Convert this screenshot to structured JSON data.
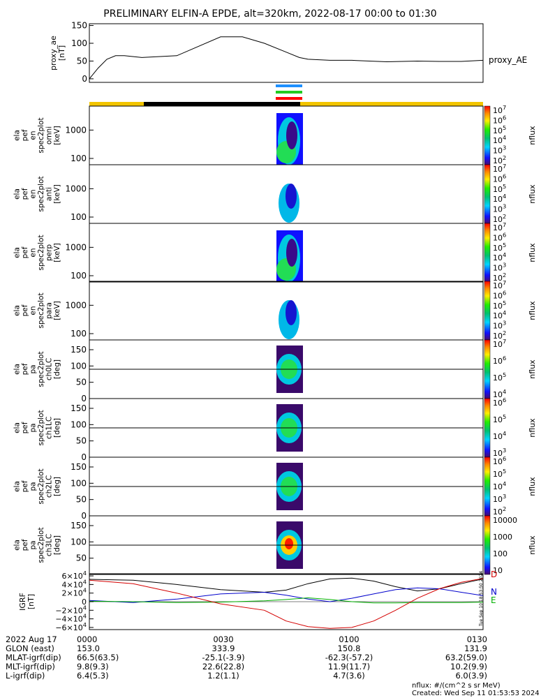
{
  "title": "PRELIMINARY ELFIN-A EPDE, alt=320km, 2022-08-17 00:00 to 01:30",
  "proxy_ae": {
    "ylabel_lines": [
      "proxy_ae",
      "[nT]"
    ],
    "legend": "proxy_AE",
    "yticks": [
      "150",
      "100",
      "50",
      "0"
    ],
    "ylim": [
      -10,
      155
    ]
  },
  "panels": [
    {
      "id": "omni",
      "ylabel_lines": [
        "ela",
        "pef",
        "en",
        "spec2plot",
        "omni",
        "[keV]"
      ],
      "yticks": [
        "1000",
        "100"
      ],
      "cb_ticks": [
        "10^7",
        "10^6",
        "10^5",
        "10^4",
        "10^3",
        "10^2"
      ],
      "cb_label": "nflux"
    },
    {
      "id": "anti",
      "ylabel_lines": [
        "ela",
        "pef",
        "en",
        "spec2plot",
        "anti",
        "[keV]"
      ],
      "yticks": [
        "1000",
        "100"
      ],
      "cb_ticks": [
        "10^7",
        "10^6",
        "10^5",
        "10^4",
        "10^3",
        "10^2"
      ],
      "cb_label": "nflux"
    },
    {
      "id": "perp",
      "ylabel_lines": [
        "ela",
        "pef",
        "en",
        "spec2plot",
        "perp",
        "[keV]"
      ],
      "yticks": [
        "1000",
        "100"
      ],
      "cb_ticks": [
        "10^7",
        "10^6",
        "10^5",
        "10^4",
        "10^3",
        "10^2"
      ],
      "cb_label": "nflux"
    },
    {
      "id": "para",
      "ylabel_lines": [
        "ela",
        "pef",
        "en",
        "spec2plot",
        "para",
        "[keV]"
      ],
      "yticks": [
        "1000",
        "100"
      ],
      "cb_ticks": [
        "10^7",
        "10^6",
        "10^5",
        "10^4",
        "10^3",
        "10^2"
      ],
      "cb_label": "nflux"
    },
    {
      "id": "ch0LC",
      "ylabel_lines": [
        "ela",
        "pef",
        "pa",
        "spec2plot",
        "ch0LC",
        "[deg]"
      ],
      "yticks": [
        "150",
        "100",
        "50",
        "0"
      ],
      "cb_ticks": [
        "10^7",
        "10^6",
        "10^5",
        "10^4"
      ],
      "cb_label": "nflux"
    },
    {
      "id": "ch1LC",
      "ylabel_lines": [
        "ela",
        "pef",
        "pa",
        "spec2plot",
        "ch1LC",
        "[deg]"
      ],
      "yticks": [
        "150",
        "100",
        "50",
        "0"
      ],
      "cb_ticks": [
        "10^6",
        "10^5",
        "10^4",
        "10^3"
      ],
      "cb_label": "nflux"
    },
    {
      "id": "ch2LC",
      "ylabel_lines": [
        "ela",
        "pef",
        "pa",
        "spec2plot",
        "ch2LC",
        "[deg]"
      ],
      "yticks": [
        "150",
        "100",
        "50",
        "0"
      ],
      "cb_ticks": [
        "10^6",
        "10^5",
        "10^4",
        "10^3",
        "10^2"
      ],
      "cb_label": "nflux"
    },
    {
      "id": "ch3LC",
      "ylabel_lines": [
        "ela",
        "pef",
        "pa",
        "spec2plot",
        "ch3LC",
        "[deg]"
      ],
      "yticks": [
        "150",
        "100",
        "50"
      ],
      "cb_ticks": [
        "10000",
        "1000",
        "100",
        "10"
      ],
      "cb_label": "nflux"
    }
  ],
  "igrf": {
    "ylabel_lines": [
      "IGRF",
      "[nT]"
    ],
    "yticks": [
      "6×10^4",
      "4×10^4",
      "2×10^4",
      "0",
      "−2×10^4",
      "−4×10^4",
      "−6×10^4"
    ],
    "legend": [
      {
        "name": "D",
        "color": "#d40000"
      },
      {
        "name": "N",
        "color": "#0000cc"
      },
      {
        "name": "E",
        "color": "#00b000"
      }
    ],
    "side_stamp": "Tue Sep 10 18:53:50 2024"
  },
  "footer": {
    "rows": [
      {
        "label": "2022 Aug 17",
        "values": [
          "0000",
          "0030",
          "0100",
          "0130"
        ]
      },
      {
        "label": "GLON (east)",
        "values": [
          "153.0",
          "333.9",
          "150.8",
          "131.9"
        ]
      },
      {
        "label": "MLAT-igrf(dip)",
        "values": [
          "66.5(63.5)",
          "-25.1(-3.9)",
          "-62.3(-57.2)",
          "63.2(59.0)"
        ]
      },
      {
        "label": "MLT-igrf(dip)",
        "values": [
          "9.8(9.3)",
          "22.6(22.8)",
          "11.9(11.7)",
          "10.2(9.9)"
        ]
      },
      {
        "label": "L-igrf(dip)",
        "values": [
          "6.4(5.3)",
          "1.2(1.1)",
          "4.7(3.6)",
          "6.0(3.9)"
        ]
      }
    ],
    "units_note": "nflux: #/(cm^2 s sr MeV)",
    "created": "Created: Wed Sep 11 01:53:53 2024"
  },
  "colors": {
    "bar_yellow": "#f2c400",
    "bar_black": "#000000",
    "marker_blue": "#1e90ff",
    "marker_green": "#22cc22",
    "marker_red": "#ff0000"
  },
  "chart_data": [
    {
      "type": "line",
      "name": "proxy_AE",
      "x_minutes": [
        0,
        2,
        4,
        6,
        8,
        12,
        20,
        30,
        35,
        40,
        45,
        48,
        50,
        55,
        60,
        68,
        75,
        80,
        85,
        90
      ],
      "y_nT": [
        0,
        30,
        55,
        65,
        65,
        60,
        65,
        118,
        118,
        100,
        75,
        60,
        55,
        52,
        52,
        48,
        50,
        49,
        49,
        52
      ],
      "xlim": [
        0,
        90
      ],
      "ylim": [
        -10,
        155
      ]
    },
    {
      "type": "line",
      "name": "IGRF",
      "x_minutes": [
        0,
        10,
        20,
        30,
        40,
        45,
        50,
        55,
        60,
        65,
        70,
        75,
        80,
        85,
        90
      ],
      "series": [
        {
          "name": "black",
          "y": [
            52000,
            50000,
            40000,
            28000,
            22000,
            27000,
            42000,
            53000,
            55000,
            48000,
            35000,
            25000,
            30000,
            42000,
            53000
          ]
        },
        {
          "name": "N",
          "y": [
            3000,
            -2000,
            6000,
            18000,
            22000,
            15000,
            6000,
            0,
            8000,
            18000,
            28000,
            32000,
            30000,
            22000,
            14000
          ]
        },
        {
          "name": "E",
          "y": [
            1000,
            0,
            -2000,
            -1000,
            2000,
            5000,
            9000,
            5000,
            0,
            -3000,
            -3000,
            -2000,
            -2000,
            -2000,
            -1000
          ]
        },
        {
          "name": "D",
          "y": [
            50000,
            42000,
            20000,
            -5000,
            -20000,
            -45000,
            -58000,
            -62000,
            -60000,
            -45000,
            -20000,
            8000,
            30000,
            45000,
            54000
          ]
        }
      ],
      "ylim": [
        -65000,
        65000
      ]
    }
  ]
}
